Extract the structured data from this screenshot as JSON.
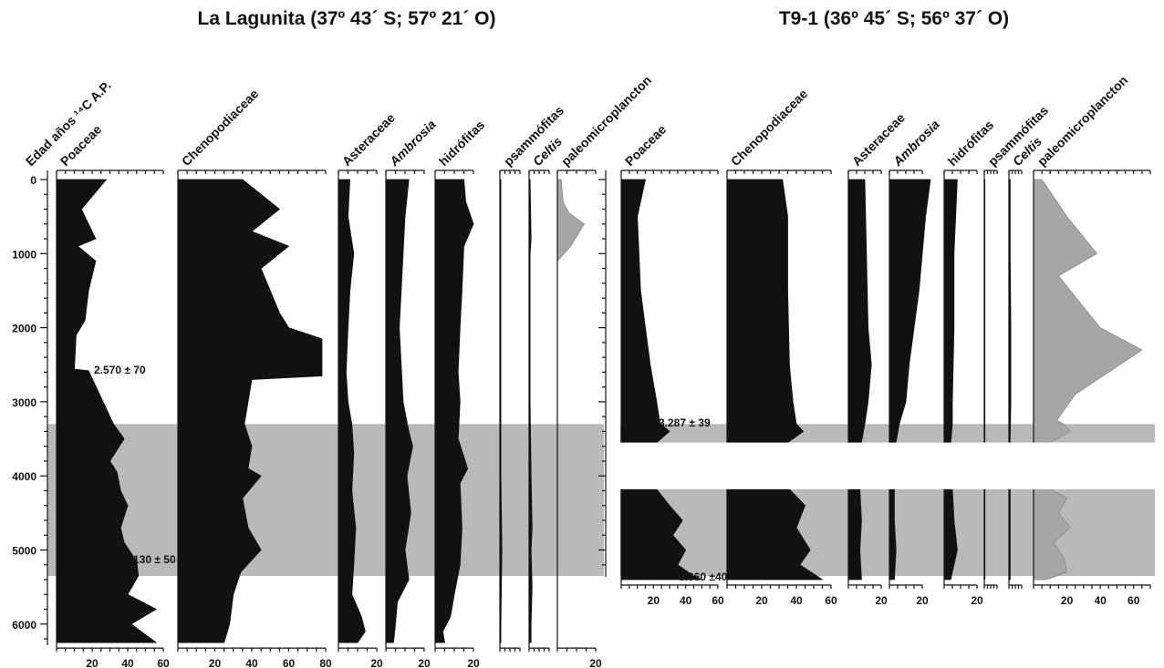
{
  "chart_data": [
    {
      "type": "area",
      "title": "La Lagunita (37º 43´ S; 57º 21´ O)",
      "ylabel": "Edad años ¹⁴C A.P.",
      "age_ticks": [
        0,
        1000,
        2000,
        3000,
        4000,
        5000,
        6000
      ],
      "age_range": [
        0,
        6250
      ],
      "shaded_band_ages": [
        3300,
        5350
      ],
      "annotations": [
        {
          "text": "2.570 ± 70",
          "age": 2570
        },
        {
          "text": "5.130 ± 50",
          "age": 5130
        }
      ],
      "series": [
        {
          "name": "Poaceae",
          "italic": false,
          "max": 60,
          "ticks": [
            "20",
            "40",
            "60"
          ],
          "color": "#111111",
          "profile": [
            [
              0,
              28
            ],
            [
              400,
              14
            ],
            [
              600,
              18
            ],
            [
              800,
              22
            ],
            [
              900,
              12
            ],
            [
              1100,
              22
            ],
            [
              1500,
              18
            ],
            [
              1900,
              16
            ],
            [
              2100,
              11
            ],
            [
              2560,
              10
            ],
            [
              2580,
              18
            ],
            [
              3300,
              32
            ],
            [
              3500,
              38
            ],
            [
              3800,
              30
            ],
            [
              3950,
              34
            ],
            [
              4200,
              36
            ],
            [
              4400,
              40
            ],
            [
              4700,
              36
            ],
            [
              4900,
              38
            ],
            [
              5150,
              45
            ],
            [
              5350,
              46
            ],
            [
              5600,
              40
            ],
            [
              5800,
              56
            ],
            [
              6000,
              42
            ],
            [
              6250,
              56
            ]
          ]
        },
        {
          "name": "Chenopodiaceae",
          "italic": false,
          "max": 80,
          "ticks": [
            "20",
            "40",
            "60",
            "80"
          ],
          "color": "#111111",
          "profile": [
            [
              0,
              35
            ],
            [
              400,
              55
            ],
            [
              700,
              40
            ],
            [
              900,
              60
            ],
            [
              1200,
              45
            ],
            [
              1800,
              55
            ],
            [
              2000,
              60
            ],
            [
              2150,
              78
            ],
            [
              2650,
              78
            ],
            [
              2700,
              40
            ],
            [
              3000,
              38
            ],
            [
              3300,
              36
            ],
            [
              3600,
              40
            ],
            [
              3900,
              38
            ],
            [
              4000,
              45
            ],
            [
              4300,
              35
            ],
            [
              4700,
              38
            ],
            [
              5000,
              45
            ],
            [
              5300,
              34
            ],
            [
              5600,
              30
            ],
            [
              6000,
              28
            ],
            [
              6250,
              25
            ]
          ]
        },
        {
          "name": "Asteraceae",
          "italic": false,
          "max": 20,
          "ticks": [
            "20"
          ],
          "color": "#111111",
          "profile": [
            [
              0,
              6
            ],
            [
              500,
              5
            ],
            [
              1000,
              8
            ],
            [
              1500,
              6
            ],
            [
              2000,
              5
            ],
            [
              2600,
              4
            ],
            [
              3000,
              5
            ],
            [
              3300,
              7
            ],
            [
              3700,
              8
            ],
            [
              4200,
              7
            ],
            [
              4700,
              9
            ],
            [
              5200,
              8
            ],
            [
              5600,
              7
            ],
            [
              5900,
              12
            ],
            [
              6100,
              14
            ],
            [
              6250,
              10
            ]
          ]
        },
        {
          "name": "Ambrosia",
          "italic": true,
          "max": 20,
          "ticks": [
            "20"
          ],
          "color": "#111111",
          "profile": [
            [
              0,
              12
            ],
            [
              500,
              10
            ],
            [
              1000,
              9
            ],
            [
              1500,
              8
            ],
            [
              2000,
              7
            ],
            [
              2500,
              8
            ],
            [
              3000,
              9
            ],
            [
              3400,
              12
            ],
            [
              3600,
              14
            ],
            [
              4000,
              11
            ],
            [
              4500,
              13
            ],
            [
              5000,
              10
            ],
            [
              5400,
              12
            ],
            [
              5700,
              6
            ],
            [
              6000,
              5
            ],
            [
              6250,
              4
            ]
          ]
        },
        {
          "name": "hidrófitas",
          "italic": false,
          "max": 20,
          "ticks": [
            "20"
          ],
          "color": "#111111",
          "profile": [
            [
              0,
              15
            ],
            [
              300,
              16
            ],
            [
              600,
              20
            ],
            [
              900,
              15
            ],
            [
              1500,
              14
            ],
            [
              2000,
              13
            ],
            [
              2600,
              12
            ],
            [
              3000,
              13
            ],
            [
              3500,
              12
            ],
            [
              3900,
              17
            ],
            [
              4100,
              13
            ],
            [
              4700,
              14
            ],
            [
              5200,
              13
            ],
            [
              5600,
              10
            ],
            [
              5900,
              8
            ],
            [
              6100,
              4
            ],
            [
              6250,
              5
            ]
          ]
        },
        {
          "name": "psammófitas",
          "italic": false,
          "max": 20,
          "ticks": [],
          "color": "#111111",
          "profile": [
            [
              0,
              1
            ],
            [
              1000,
              1
            ],
            [
              2000,
              1
            ],
            [
              3000,
              1
            ],
            [
              4000,
              1
            ],
            [
              5000,
              2
            ],
            [
              6000,
              1
            ],
            [
              6250,
              1
            ]
          ]
        },
        {
          "name": "Celtis",
          "italic": true,
          "max": 20,
          "ticks": [],
          "color": "#111111",
          "profile": [
            [
              0,
              1
            ],
            [
              800,
              2
            ],
            [
              1000,
              1
            ],
            [
              2000,
              1
            ],
            [
              3000,
              1
            ],
            [
              4000,
              2
            ],
            [
              4700,
              3
            ],
            [
              5000,
              2
            ],
            [
              5500,
              3
            ],
            [
              6000,
              2
            ],
            [
              6250,
              2
            ]
          ]
        },
        {
          "name": "paleomicroplancton",
          "italic": false,
          "max": 20,
          "ticks": [
            "20"
          ],
          "color": "#a6a6a8",
          "profile": [
            [
              0,
              2
            ],
            [
              300,
              3
            ],
            [
              450,
              6
            ],
            [
              600,
              14
            ],
            [
              900,
              7
            ],
            [
              1100,
              0
            ],
            [
              6250,
              0
            ]
          ]
        }
      ]
    },
    {
      "type": "area",
      "title": "T9-1 (36º 45´ S; 56º 37´ O)",
      "age_ticks": [
        0,
        1000,
        2000,
        3000,
        4000,
        5000,
        6000
      ],
      "age_range": [
        0,
        5400
      ],
      "shaded_band_ages": [
        3300,
        5350
      ],
      "hiatus_ages": [
        3550,
        4180
      ],
      "annotations": [
        {
          "text": "3.287 ± 39",
          "age": 3287
        },
        {
          "text": "5.360 ±40",
          "age": 5360
        }
      ],
      "series": [
        {
          "name": "Poaceae",
          "italic": false,
          "max": 60,
          "ticks": [
            "20",
            "40",
            "60"
          ],
          "color": "#111111",
          "profile": [
            [
              0,
              15
            ],
            [
              500,
              10
            ],
            [
              1500,
              12
            ],
            [
              2500,
              18
            ],
            [
              3000,
              22
            ],
            [
              3287,
              24
            ],
            [
              3400,
              30
            ],
            [
              3550,
              22
            ],
            [
              4180,
              22
            ],
            [
              4400,
              30
            ],
            [
              4600,
              38
            ],
            [
              4800,
              32
            ],
            [
              5000,
              40
            ],
            [
              5200,
              35
            ],
            [
              5350,
              45
            ],
            [
              5400,
              50
            ]
          ]
        },
        {
          "name": "Chenopodiaceae",
          "italic": false,
          "max": 60,
          "ticks": [
            "20",
            "40",
            "60"
          ],
          "color": "#111111",
          "profile": [
            [
              0,
              32
            ],
            [
              500,
              35
            ],
            [
              1500,
              35
            ],
            [
              2500,
              36
            ],
            [
              3000,
              38
            ],
            [
              3300,
              40
            ],
            [
              3400,
              44
            ],
            [
              3550,
              35
            ],
            [
              4180,
              36
            ],
            [
              4400,
              45
            ],
            [
              4700,
              40
            ],
            [
              5000,
              48
            ],
            [
              5200,
              42
            ],
            [
              5400,
              55
            ]
          ]
        },
        {
          "name": "Asteraceae",
          "italic": false,
          "max": 20,
          "ticks": [
            "20"
          ],
          "color": "#111111",
          "profile": [
            [
              0,
              10
            ],
            [
              1000,
              11
            ],
            [
              2000,
              12
            ],
            [
              2500,
              14
            ],
            [
              3000,
              12
            ],
            [
              3300,
              10
            ],
            [
              3550,
              8
            ],
            [
              4180,
              7
            ],
            [
              4600,
              8
            ],
            [
              5000,
              7
            ],
            [
              5400,
              8
            ]
          ]
        },
        {
          "name": "Ambrosia",
          "italic": true,
          "max": 20,
          "ticks": [
            "20"
          ],
          "color": "#111111",
          "profile": [
            [
              0,
              25
            ],
            [
              500,
              22
            ],
            [
              1000,
              20
            ],
            [
              1500,
              18
            ],
            [
              2000,
              15
            ],
            [
              2500,
              12
            ],
            [
              3000,
              10
            ],
            [
              3300,
              6
            ],
            [
              3550,
              4
            ],
            [
              4180,
              3
            ],
            [
              4600,
              3
            ],
            [
              5000,
              4
            ],
            [
              5400,
              3
            ]
          ]
        },
        {
          "name": "hidrófitas",
          "italic": false,
          "max": 20,
          "ticks": [
            "20"
          ],
          "color": "#111111",
          "profile": [
            [
              0,
              8
            ],
            [
              500,
              7
            ],
            [
              1000,
              6
            ],
            [
              2000,
              6
            ],
            [
              3000,
              5
            ],
            [
              3300,
              5
            ],
            [
              3550,
              4
            ],
            [
              4180,
              5
            ],
            [
              4600,
              6
            ],
            [
              5000,
              8
            ],
            [
              5400,
              4
            ]
          ]
        },
        {
          "name": "psammófitas",
          "italic": false,
          "max": 20,
          "ticks": [],
          "color": "#111111",
          "profile": [
            [
              0,
              1
            ],
            [
              2000,
              1
            ],
            [
              4000,
              1
            ],
            [
              5400,
              1
            ]
          ]
        },
        {
          "name": "Celtis",
          "italic": true,
          "max": 20,
          "ticks": [],
          "color": "#111111",
          "profile": [
            [
              0,
              2
            ],
            [
              1000,
              2
            ],
            [
              2000,
              3
            ],
            [
              3000,
              3
            ],
            [
              3500,
              2
            ],
            [
              4500,
              2
            ],
            [
              5400,
              2
            ]
          ]
        },
        {
          "name": "paleomicroplancton",
          "italic": false,
          "max": 70,
          "ticks": [
            "20",
            "40",
            "60"
          ],
          "color": "#a6a6a8",
          "profile": [
            [
              0,
              5
            ],
            [
              500,
              20
            ],
            [
              1000,
              38
            ],
            [
              1300,
              15
            ],
            [
              2000,
              40
            ],
            [
              2300,
              65
            ],
            [
              2900,
              25
            ],
            [
              3250,
              14
            ],
            [
              3300,
              18
            ],
            [
              3400,
              22
            ],
            [
              3550,
              10
            ],
            [
              4180,
              10
            ],
            [
              4300,
              20
            ],
            [
              4500,
              15
            ],
            [
              4700,
              22
            ],
            [
              4900,
              12
            ],
            [
              5100,
              18
            ],
            [
              5300,
              20
            ],
            [
              5400,
              8
            ]
          ]
        }
      ]
    }
  ]
}
